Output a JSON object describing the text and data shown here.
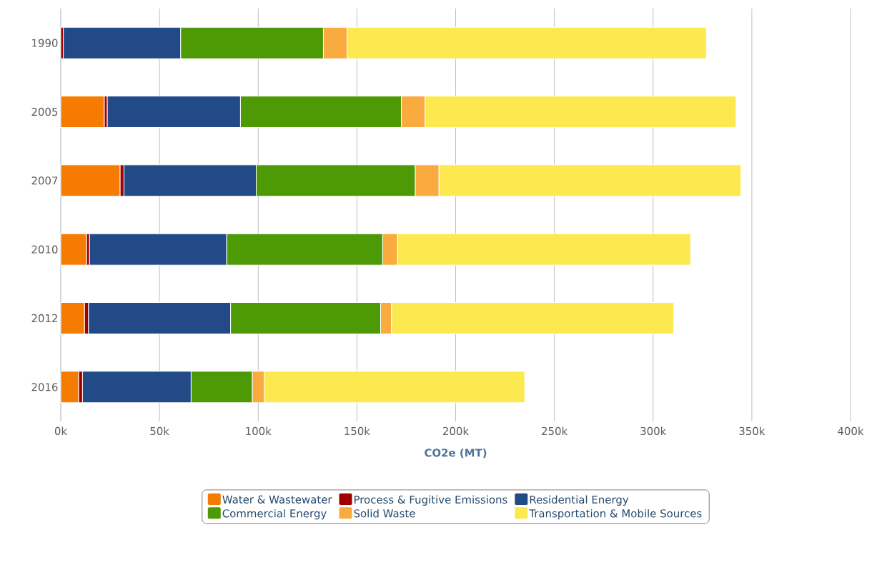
{
  "chart_data": {
    "type": "bar",
    "orientation": "horizontal",
    "stacked": true,
    "categories": [
      "1990",
      "2005",
      "2007",
      "2010",
      "2012",
      "2016"
    ],
    "series": [
      {
        "name": "Water & Wastewater",
        "color": "#f57c00",
        "values": [
          0,
          22000,
          30000,
          13000,
          12000,
          9000
        ]
      },
      {
        "name": "Process & Fugitive Emissions",
        "color": "#a00000",
        "values": [
          1300,
          1500,
          2000,
          1500,
          2000,
          2000
        ]
      },
      {
        "name": "Residential Energy",
        "color": "#214a87",
        "values": [
          59400,
          67500,
          67000,
          69500,
          72000,
          55000
        ]
      },
      {
        "name": "Commercial Energy",
        "color": "#4e9a06",
        "values": [
          72300,
          81500,
          80500,
          79000,
          76000,
          31000
        ]
      },
      {
        "name": "Solid Waste",
        "color": "#f9ab3f",
        "values": [
          12000,
          12000,
          12000,
          7500,
          5500,
          6000
        ]
      },
      {
        "name": "Transportation & Mobile Sources",
        "color": "#fce94f",
        "values": [
          182000,
          157500,
          153000,
          148500,
          143000,
          132000
        ]
      }
    ],
    "xlabel": "CO2e (MT)",
    "xlim": [
      0,
      400000
    ],
    "xticks": [
      {
        "value": 0,
        "label": "0k"
      },
      {
        "value": 50000,
        "label": "50k"
      },
      {
        "value": 100000,
        "label": "100k"
      },
      {
        "value": 150000,
        "label": "150k"
      },
      {
        "value": 200000,
        "label": "200k"
      },
      {
        "value": 250000,
        "label": "250k"
      },
      {
        "value": 300000,
        "label": "300k"
      },
      {
        "value": 350000,
        "label": "350k"
      },
      {
        "value": 400000,
        "label": "400k"
      }
    ],
    "grid": "x",
    "legend": "bottom"
  }
}
